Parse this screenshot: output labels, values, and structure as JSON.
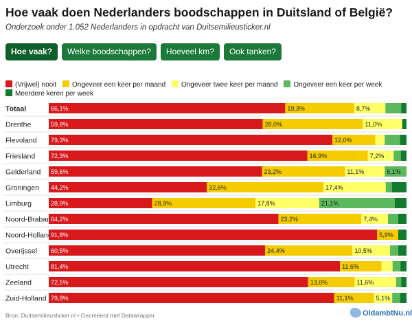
{
  "title": "Hoe vaak doen Nederlanders boodschappen in Duitsland of België?",
  "subtitle": "Onderzoek onder 1.052 Nederlanders in opdracht van Duitsemilieusticker.nl",
  "tabs": [
    {
      "label": "Hoe vaak?",
      "active": true
    },
    {
      "label": "Welke boodschappen?",
      "active": false
    },
    {
      "label": "Hoeveel km?",
      "active": false
    },
    {
      "label": "Ook tanken?",
      "active": false
    }
  ],
  "legend": [
    {
      "label": "(Vrijwel) nooit",
      "color": "#d7191c"
    },
    {
      "label": "Ongeveer een keer per maand",
      "color": "#f5cc00"
    },
    {
      "label": "Ongeveer twee keer per maand",
      "color": "#ffff66"
    },
    {
      "label": "Ongeveer een keer per week",
      "color": "#5cb85c"
    },
    {
      "label": "Meerdere keren per week",
      "color": "#117a2e"
    }
  ],
  "footer": "Bron: Duitsemilieusticker.nl • Gecreëerd met Datawrapper",
  "logo_text": "OldambtNu.nl",
  "chart_data": {
    "type": "bar",
    "orientation": "horizontal",
    "stacked": true,
    "unit": "%",
    "xlim": [
      0,
      100
    ],
    "categories": [
      "Totaal",
      "Drenthe",
      "Flevoland",
      "Friesland",
      "Gelderland",
      "Groningen",
      "Limburg",
      "Noord-Brabant",
      "Noord-Holland",
      "Overijssel",
      "Utrecht",
      "Zeeland",
      "Zuid-Holland"
    ],
    "bold_categories": [
      "Totaal"
    ],
    "series": [
      {
        "name": "(Vrijwel) nooit",
        "color": "#d7191c",
        "values": [
          66.1,
          59.8,
          79.3,
          72.3,
          59.6,
          44.2,
          28.9,
          64.2,
          91.8,
          60.5,
          81.4,
          72.5,
          79.8
        ]
      },
      {
        "name": "Ongeveer een keer per maand",
        "color": "#f5cc00",
        "values": [
          19.3,
          28.0,
          12.0,
          16.9,
          23.2,
          32.6,
          28.9,
          23.2,
          5.9,
          24.4,
          11.6,
          13.0,
          11.1
        ]
      },
      {
        "name": "Ongeveer twee keer per maand",
        "color": "#ffff66",
        "values": [
          8.7,
          11.0,
          2.6,
          7.2,
          11.1,
          17.4,
          17.8,
          7.4,
          0,
          10.5,
          3.1,
          11.6,
          5.1
        ]
      },
      {
        "name": "Ongeveer een keer per week",
        "color": "#5cb85c",
        "values": [
          4.4,
          0,
          4.3,
          2.0,
          6.1,
          1.7,
          21.1,
          2.9,
          0,
          2.3,
          2.2,
          1.4,
          2.2
        ]
      },
      {
        "name": "Meerdere keren per week",
        "color": "#117a2e",
        "values": [
          1.5,
          1.2,
          1.8,
          1.6,
          0,
          4.1,
          3.3,
          2.3,
          2.3,
          2.3,
          1.7,
          1.5,
          1.8
        ]
      }
    ],
    "value_labels": [
      [
        "66,1%",
        "19,3%",
        "8,7%",
        "",
        ""
      ],
      [
        "59,8%",
        "28,0%",
        "11,0%",
        "",
        ""
      ],
      [
        "79,3%",
        "12,0%",
        "",
        "",
        ""
      ],
      [
        "72,3%",
        "16,9%",
        "7,2%",
        "",
        ""
      ],
      [
        "59,6%",
        "23,2%",
        "11,1%",
        "6,1%",
        ""
      ],
      [
        "44,2%",
        "32,6%",
        "17,4%",
        "",
        ""
      ],
      [
        "28,9%",
        "28,9%",
        "17,8%",
        "21,1%",
        ""
      ],
      [
        "64,2%",
        "23,2%",
        "7,4%",
        "",
        ""
      ],
      [
        "91,8%",
        "5,9%",
        "",
        "",
        ""
      ],
      [
        "60,5%",
        "24,4%",
        "10,5%",
        "",
        ""
      ],
      [
        "81,4%",
        "11,6%",
        "",
        "",
        ""
      ],
      [
        "72,5%",
        "13,0%",
        "11,6%",
        "",
        ""
      ],
      [
        "79,8%",
        "11,1%",
        "5,1%",
        "",
        ""
      ]
    ]
  }
}
